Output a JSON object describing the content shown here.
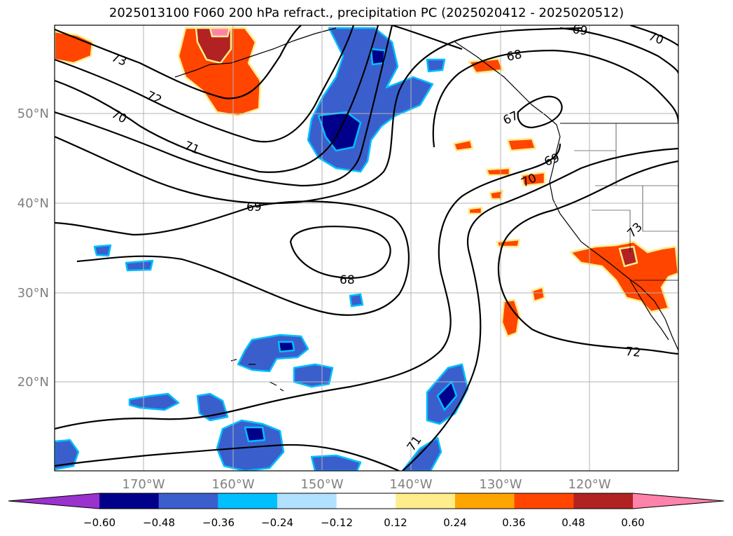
{
  "title": "2025013100 F060 200 hPa refract., precipitation PC (2025020412 - 2025020512)",
  "lat_labels": [
    "50°N",
    "40°N",
    "30°N",
    "20°N"
  ],
  "lon_labels": [
    "170°W",
    "160°W",
    "150°W",
    "140°W",
    "130°W",
    "120°W"
  ],
  "contour_labels": [
    "73",
    "72",
    "70",
    "71",
    "69",
    "68",
    "72",
    "71",
    "68",
    "67",
    "69",
    "70",
    "69",
    "70",
    "73"
  ],
  "colorbar": {
    "ticks": [
      "−0.60",
      "−0.48",
      "−0.36",
      "−0.24",
      "−0.12",
      "0.12",
      "0.24",
      "0.36",
      "0.48",
      "0.60"
    ],
    "colors": [
      "#9a32cd",
      "#00008b",
      "#3a5fcd",
      "#00bfff",
      "#b0e2ff",
      "#ffffff",
      "#ffec8b",
      "#ffa500",
      "#ff4500",
      "#b22222",
      "#ff82ab"
    ]
  },
  "fill_colors": {
    "neg_light": "#00bfff",
    "neg_mid": "#3a5fcd",
    "neg_dark": "#00008b",
    "pos_light": "#ffec8b",
    "pos_mid": "#ffa500",
    "pos_strong": "#ff4500",
    "pos_dark": "#b22222",
    "pos_max": "#ff82ab"
  }
}
